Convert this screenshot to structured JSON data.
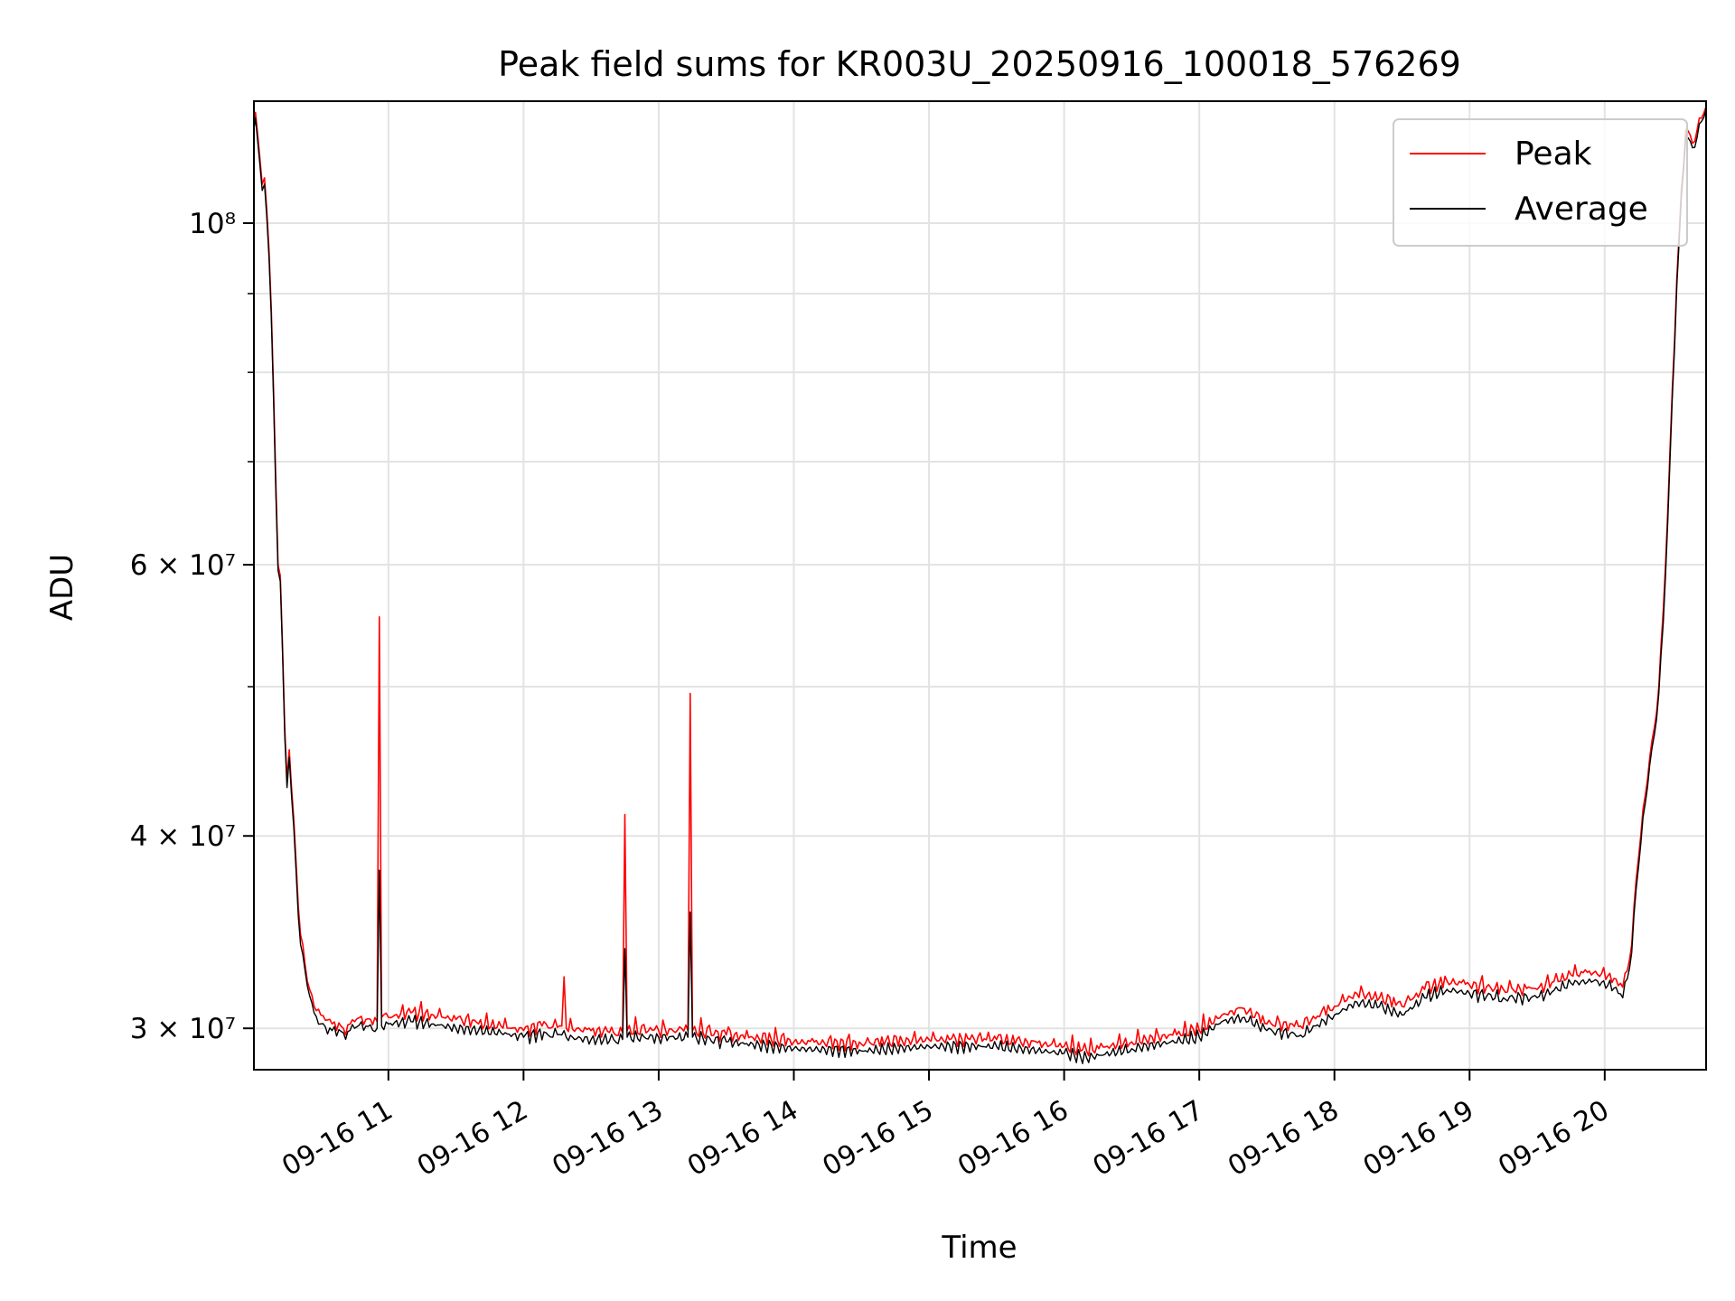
{
  "chart_data": {
    "type": "line",
    "title": "Peak field sums for KR003U_20250916_100018_576269",
    "xlabel": "Time",
    "ylabel": "ADU",
    "y_scale": "log",
    "ylim": [
      28200000,
      120000000
    ],
    "xlim": [
      "2025-09-16 10:00:18",
      "2025-09-16 20:45:00"
    ],
    "x_ticks": [
      {
        "time": "2025-09-16 11:00",
        "label": "09-16 11"
      },
      {
        "time": "2025-09-16 12:00",
        "label": "09-16 12"
      },
      {
        "time": "2025-09-16 13:00",
        "label": "09-16 13"
      },
      {
        "time": "2025-09-16 14:00",
        "label": "09-16 14"
      },
      {
        "time": "2025-09-16 15:00",
        "label": "09-16 15"
      },
      {
        "time": "2025-09-16 16:00",
        "label": "09-16 16"
      },
      {
        "time": "2025-09-16 17:00",
        "label": "09-16 17"
      },
      {
        "time": "2025-09-16 18:00",
        "label": "09-16 18"
      },
      {
        "time": "2025-09-16 19:00",
        "label": "09-16 19"
      },
      {
        "time": "2025-09-16 20:00",
        "label": "09-16 20"
      }
    ],
    "y_major_ticks": [
      {
        "value": 30000000,
        "label": "3 × 10⁷"
      },
      {
        "value": 40000000,
        "label": "4 × 10⁷"
      },
      {
        "value": 60000000,
        "label": "6 × 10⁷"
      },
      {
        "value": 100000000,
        "label": "10⁸"
      }
    ],
    "y_minor_ticks": [
      50000000,
      70000000,
      80000000,
      90000000
    ],
    "grid": true,
    "legend_position": "top-right",
    "series": [
      {
        "name": "Peak",
        "color": "#ff0000",
        "points": [
          [
            "2025-09-16 10:00:18",
            116000000
          ],
          [
            "2025-09-16 10:01",
            118000000
          ],
          [
            "2025-09-16 10:02",
            114000000
          ],
          [
            "2025-09-16 10:03",
            110000000
          ],
          [
            "2025-09-16 10:04",
            106000000
          ],
          [
            "2025-09-16 10:05",
            107000000
          ],
          [
            "2025-09-16 10:06",
            102000000
          ],
          [
            "2025-09-16 10:07",
            96000000
          ],
          [
            "2025-09-16 10:08",
            88000000
          ],
          [
            "2025-09-16 10:09",
            78000000
          ],
          [
            "2025-09-16 10:10",
            68000000
          ],
          [
            "2025-09-16 10:11",
            60000000
          ],
          [
            "2025-09-16 10:12",
            59000000
          ],
          [
            "2025-09-16 10:13",
            53000000
          ],
          [
            "2025-09-16 10:14",
            47000000
          ],
          [
            "2025-09-16 10:15",
            43500000
          ],
          [
            "2025-09-16 10:16",
            45500000
          ],
          [
            "2025-09-16 10:17",
            43000000
          ],
          [
            "2025-09-16 10:18",
            41000000
          ],
          [
            "2025-09-16 10:19",
            38500000
          ],
          [
            "2025-09-16 10:20",
            36000000
          ],
          [
            "2025-09-16 10:21",
            34500000
          ],
          [
            "2025-09-16 10:22",
            34000000
          ],
          [
            "2025-09-16 10:23",
            33000000
          ],
          [
            "2025-09-16 10:25",
            31800000
          ],
          [
            "2025-09-16 10:27",
            31000000
          ],
          [
            "2025-09-16 10:30",
            30600000
          ],
          [
            "2025-09-16 10:35",
            30200000
          ],
          [
            "2025-09-16 10:40",
            30000000
          ],
          [
            "2025-09-16 10:45",
            30300000
          ],
          [
            "2025-09-16 10:50",
            30400000
          ],
          [
            "2025-09-16 10:55",
            30300000
          ],
          [
            "2025-09-16 10:56",
            55500000
          ],
          [
            "2025-09-16 10:57",
            30500000
          ],
          [
            "2025-09-16 11:00",
            30500000
          ],
          [
            "2025-09-16 11:10",
            30700000
          ],
          [
            "2025-09-16 11:20",
            30600000
          ],
          [
            "2025-09-16 11:30",
            30400000
          ],
          [
            "2025-09-16 11:40",
            30200000
          ],
          [
            "2025-09-16 11:50",
            30100000
          ],
          [
            "2025-09-16 12:00",
            29900000
          ],
          [
            "2025-09-16 12:10",
            30200000
          ],
          [
            "2025-09-16 12:17",
            30100000
          ],
          [
            "2025-09-16 12:18",
            32400000
          ],
          [
            "2025-09-16 12:19",
            30000000
          ],
          [
            "2025-09-16 12:30",
            29900000
          ],
          [
            "2025-09-16 12:40",
            29800000
          ],
          [
            "2025-09-16 12:44",
            29800000
          ],
          [
            "2025-09-16 12:45",
            41300000
          ],
          [
            "2025-09-16 12:46",
            29900000
          ],
          [
            "2025-09-16 13:00",
            29900000
          ],
          [
            "2025-09-16 13:13",
            29900000
          ],
          [
            "2025-09-16 13:14",
            49500000
          ],
          [
            "2025-09-16 13:15",
            29900000
          ],
          [
            "2025-09-16 13:30",
            29700000
          ],
          [
            "2025-09-16 14:00",
            29400000
          ],
          [
            "2025-09-16 14:30",
            29300000
          ],
          [
            "2025-09-16 15:00",
            29500000
          ],
          [
            "2025-09-16 15:30",
            29500000
          ],
          [
            "2025-09-16 16:00",
            29200000
          ],
          [
            "2025-09-16 16:10",
            29000000
          ],
          [
            "2025-09-16 16:30",
            29400000
          ],
          [
            "2025-09-16 17:00",
            29900000
          ],
          [
            "2025-09-16 17:10",
            30600000
          ],
          [
            "2025-09-16 17:20",
            30900000
          ],
          [
            "2025-09-16 17:30",
            30200000
          ],
          [
            "2025-09-16 17:45",
            30100000
          ],
          [
            "2025-09-16 18:00",
            31000000
          ],
          [
            "2025-09-16 18:10",
            31600000
          ],
          [
            "2025-09-16 18:20",
            31400000
          ],
          [
            "2025-09-16 18:30",
            31000000
          ],
          [
            "2025-09-16 18:40",
            31800000
          ],
          [
            "2025-09-16 18:50",
            32200000
          ],
          [
            "2025-09-16 19:00",
            32000000
          ],
          [
            "2025-09-16 19:15",
            31800000
          ],
          [
            "2025-09-16 19:30",
            31800000
          ],
          [
            "2025-09-16 19:45",
            32500000
          ],
          [
            "2025-09-16 19:55",
            32600000
          ],
          [
            "2025-09-16 20:05",
            32300000
          ],
          [
            "2025-09-16 20:08",
            31900000
          ],
          [
            "2025-09-16 20:10",
            32700000
          ],
          [
            "2025-09-16 20:12",
            34000000
          ],
          [
            "2025-09-16 20:14",
            37500000
          ],
          [
            "2025-09-16 20:16",
            40000000
          ],
          [
            "2025-09-16 20:18",
            42500000
          ],
          [
            "2025-09-16 20:20",
            45000000
          ],
          [
            "2025-09-16 20:22",
            47000000
          ],
          [
            "2025-09-16 20:24",
            50000000
          ],
          [
            "2025-09-16 20:26",
            56000000
          ],
          [
            "2025-09-16 20:28",
            65000000
          ],
          [
            "2025-09-16 20:30",
            78000000
          ],
          [
            "2025-09-16 20:32",
            92000000
          ],
          [
            "2025-09-16 20:34",
            105000000
          ],
          [
            "2025-09-16 20:36",
            115000000
          ],
          [
            "2025-09-16 20:38",
            114000000
          ],
          [
            "2025-09-16 20:40",
            113000000
          ],
          [
            "2025-09-16 20:42",
            117000000
          ],
          [
            "2025-09-16 20:45",
            119000000
          ]
        ]
      },
      {
        "name": "Average",
        "color": "#000000",
        "points": [
          [
            "2025-09-16 10:00:18",
            115000000
          ],
          [
            "2025-09-16 10:01",
            117000000
          ],
          [
            "2025-09-16 10:02",
            113000000
          ],
          [
            "2025-09-16 10:03",
            109000000
          ],
          [
            "2025-09-16 10:04",
            105000000
          ],
          [
            "2025-09-16 10:05",
            106000000
          ],
          [
            "2025-09-16 10:06",
            101000000
          ],
          [
            "2025-09-16 10:07",
            95000000
          ],
          [
            "2025-09-16 10:08",
            87000000
          ],
          [
            "2025-09-16 10:09",
            77000000
          ],
          [
            "2025-09-16 10:10",
            67000000
          ],
          [
            "2025-09-16 10:11",
            59500000
          ],
          [
            "2025-09-16 10:12",
            58500000
          ],
          [
            "2025-09-16 10:13",
            52500000
          ],
          [
            "2025-09-16 10:14",
            46500000
          ],
          [
            "2025-09-16 10:15",
            43000000
          ],
          [
            "2025-09-16 10:16",
            45000000
          ],
          [
            "2025-09-16 10:17",
            42500000
          ],
          [
            "2025-09-16 10:18",
            40500000
          ],
          [
            "2025-09-16 10:19",
            38000000
          ],
          [
            "2025-09-16 10:20",
            35500000
          ],
          [
            "2025-09-16 10:21",
            34000000
          ],
          [
            "2025-09-16 10:22",
            33500000
          ],
          [
            "2025-09-16 10:23",
            32700000
          ],
          [
            "2025-09-16 10:25",
            31500000
          ],
          [
            "2025-09-16 10:27",
            30700000
          ],
          [
            "2025-09-16 10:30",
            30200000
          ],
          [
            "2025-09-16 10:35",
            29900000
          ],
          [
            "2025-09-16 10:40",
            29800000
          ],
          [
            "2025-09-16 10:45",
            30000000
          ],
          [
            "2025-09-16 10:50",
            30100000
          ],
          [
            "2025-09-16 10:55",
            30000000
          ],
          [
            "2025-09-16 10:56",
            38000000
          ],
          [
            "2025-09-16 10:57",
            30100000
          ],
          [
            "2025-09-16 11:00",
            30200000
          ],
          [
            "2025-09-16 11:10",
            30300000
          ],
          [
            "2025-09-16 11:20",
            30200000
          ],
          [
            "2025-09-16 11:30",
            30000000
          ],
          [
            "2025-09-16 11:40",
            29900000
          ],
          [
            "2025-09-16 11:50",
            29800000
          ],
          [
            "2025-09-16 12:00",
            29600000
          ],
          [
            "2025-09-16 12:10",
            29800000
          ],
          [
            "2025-09-16 12:17",
            29700000
          ],
          [
            "2025-09-16 12:18",
            29900000
          ],
          [
            "2025-09-16 12:19",
            29600000
          ],
          [
            "2025-09-16 12:30",
            29500000
          ],
          [
            "2025-09-16 12:40",
            29500000
          ],
          [
            "2025-09-16 12:44",
            29500000
          ],
          [
            "2025-09-16 12:45",
            33800000
          ],
          [
            "2025-09-16 12:46",
            29600000
          ],
          [
            "2025-09-16 13:00",
            29600000
          ],
          [
            "2025-09-16 13:13",
            29600000
          ],
          [
            "2025-09-16 13:14",
            35700000
          ],
          [
            "2025-09-16 13:15",
            29600000
          ],
          [
            "2025-09-16 13:30",
            29400000
          ],
          [
            "2025-09-16 14:00",
            29100000
          ],
          [
            "2025-09-16 14:30",
            29000000
          ],
          [
            "2025-09-16 15:00",
            29200000
          ],
          [
            "2025-09-16 15:30",
            29200000
          ],
          [
            "2025-09-16 16:00",
            28900000
          ],
          [
            "2025-09-16 16:10",
            28700000
          ],
          [
            "2025-09-16 16:30",
            29100000
          ],
          [
            "2025-09-16 17:00",
            29600000
          ],
          [
            "2025-09-16 17:10",
            30300000
          ],
          [
            "2025-09-16 17:20",
            30500000
          ],
          [
            "2025-09-16 17:30",
            29900000
          ],
          [
            "2025-09-16 17:45",
            29700000
          ],
          [
            "2025-09-16 18:00",
            30600000
          ],
          [
            "2025-09-16 18:10",
            31200000
          ],
          [
            "2025-09-16 18:20",
            31000000
          ],
          [
            "2025-09-16 18:30",
            30600000
          ],
          [
            "2025-09-16 18:40",
            31400000
          ],
          [
            "2025-09-16 18:50",
            31800000
          ],
          [
            "2025-09-16 19:00",
            31600000
          ],
          [
            "2025-09-16 19:15",
            31400000
          ],
          [
            "2025-09-16 19:30",
            31400000
          ],
          [
            "2025-09-16 19:45",
            32100000
          ],
          [
            "2025-09-16 19:55",
            32200000
          ],
          [
            "2025-09-16 20:05",
            31900000
          ],
          [
            "2025-09-16 20:08",
            31400000
          ],
          [
            "2025-09-16 20:10",
            32300000
          ],
          [
            "2025-09-16 20:12",
            33600000
          ],
          [
            "2025-09-16 20:14",
            37000000
          ],
          [
            "2025-09-16 20:16",
            39500000
          ],
          [
            "2025-09-16 20:18",
            42000000
          ],
          [
            "2025-09-16 20:20",
            44500000
          ],
          [
            "2025-09-16 20:22",
            46500000
          ],
          [
            "2025-09-16 20:24",
            49500000
          ],
          [
            "2025-09-16 20:26",
            55000000
          ],
          [
            "2025-09-16 20:28",
            64000000
          ],
          [
            "2025-09-16 20:30",
            77000000
          ],
          [
            "2025-09-16 20:32",
            91000000
          ],
          [
            "2025-09-16 20:34",
            104000000
          ],
          [
            "2025-09-16 20:36",
            114000000
          ],
          [
            "2025-09-16 20:38",
            113000000
          ],
          [
            "2025-09-16 20:40",
            112000000
          ],
          [
            "2025-09-16 20:42",
            116000000
          ],
          [
            "2025-09-16 20:45",
            118500000
          ]
        ]
      }
    ]
  }
}
